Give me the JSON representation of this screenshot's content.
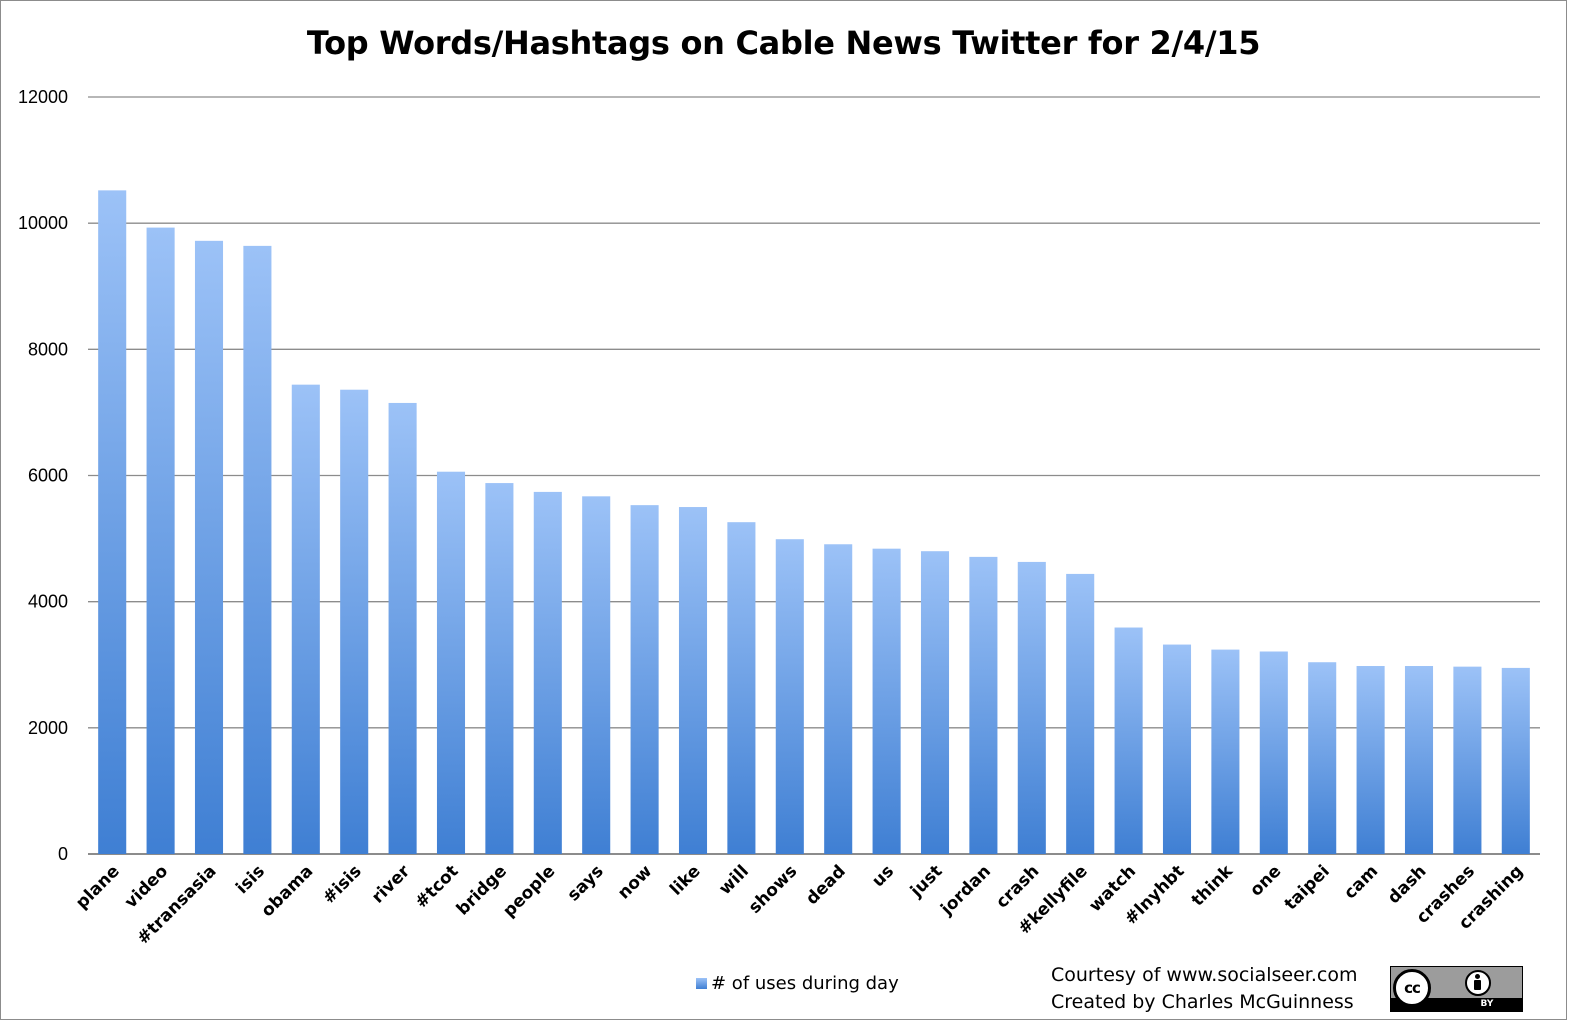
{
  "chart_data": {
    "type": "bar",
    "title": "Top Words/Hashtags on Cable News Twitter for 2/4/15",
    "xlabel": "",
    "ylabel": "",
    "ylim": [
      0,
      12000
    ],
    "yticks": [
      "0",
      "2000",
      "4000",
      "6000",
      "8000",
      "10000",
      "12000"
    ],
    "grid": true,
    "legend_position": "bottom",
    "categories": [
      "plane",
      "video",
      "#transasia",
      "isis",
      "obama",
      "#isis",
      "river",
      "#tcot",
      "bridge",
      "people",
      "says",
      "now",
      "like",
      "will",
      "shows",
      "dead",
      "us",
      "just",
      "jordan",
      "crash",
      "#kellyfile",
      "watch",
      "#lnyhbt",
      "think",
      "one",
      "taipei",
      "cam",
      "dash",
      "crashes",
      "crashing"
    ],
    "series": [
      {
        "name": "# of uses during day",
        "values": [
          10520,
          9930,
          9720,
          9640,
          7440,
          7360,
          7150,
          6060,
          5880,
          5740,
          5670,
          5530,
          5500,
          5260,
          4990,
          4910,
          4840,
          4800,
          4710,
          4630,
          4440,
          3590,
          3320,
          3240,
          3210,
          3040,
          2980,
          2980,
          2970,
          2950
        ]
      }
    ],
    "colors": {
      "bar_top": "#9cc2f7",
      "bar_bottom": "#3f7fd3",
      "grid": "#8c8c8c"
    }
  },
  "credits": {
    "line1": "Courtesy of www.socialseer.com",
    "line2": "Created by Charles McGuinness"
  },
  "license_badge": {
    "cc_label": "cc",
    "by_label": "BY"
  }
}
